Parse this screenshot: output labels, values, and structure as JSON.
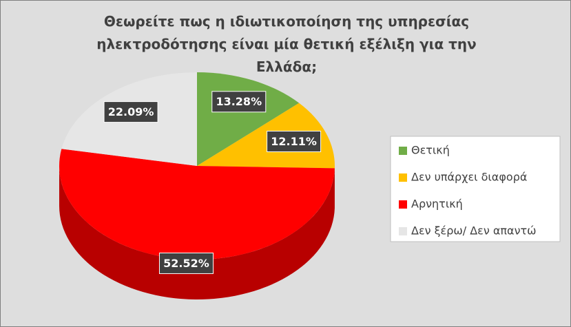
{
  "chart_data": {
    "type": "pie",
    "title": "Θεωρείτε πως η ιδιωτικοποίηση της υπηρεσίας ηλεκτροδότησης είναι μία θετική εξέλιξη για την Ελλάδα;",
    "categories": [
      "Θετική",
      "Δεν υπάρχει διαφορά",
      "Αρνητική",
      "Δεν ξέρω/ Δεν απαντώ"
    ],
    "values": [
      13.28,
      12.11,
      52.52,
      22.09
    ],
    "value_labels": [
      "13.28%",
      "12.11%",
      "52.52%",
      "22.09%"
    ],
    "colors": [
      "#70ad47",
      "#ffc000",
      "#ff0000",
      "#e6e6e6"
    ],
    "legend": "right"
  }
}
